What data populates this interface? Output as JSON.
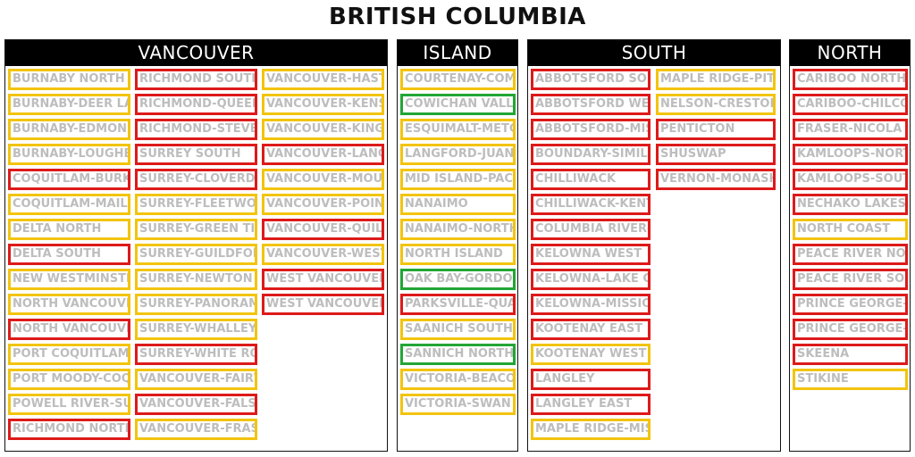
{
  "title": "BRITISH COLUMBIA",
  "colors": {
    "red": "#dd1a1a",
    "yellow": "#f2c40f",
    "green": "#22a636"
  },
  "regions": [
    {
      "name": "VANCOUVER",
      "columns": [
        [
          {
            "label": "BURNABY NORTH",
            "status": "yellow"
          },
          {
            "label": "BURNABY-DEER LAKE",
            "status": "yellow"
          },
          {
            "label": "BURNABY-EDMONDS",
            "status": "yellow"
          },
          {
            "label": "BURNABY-LOUGHEED",
            "status": "yellow"
          },
          {
            "label": "COQUITLAM-BURKE MOUNTAIN",
            "status": "red"
          },
          {
            "label": "COQUITLAM-MAILLARDVILLE",
            "status": "yellow"
          },
          {
            "label": "DELTA NORTH",
            "status": "yellow"
          },
          {
            "label": "DELTA SOUTH",
            "status": "red"
          },
          {
            "label": "NEW WESTMINSTER",
            "status": "yellow"
          },
          {
            "label": "NORTH VANCOUVER-LONSDALE",
            "status": "yellow"
          },
          {
            "label": "NORTH VANCOUVER-SEYMOUR",
            "status": "red"
          },
          {
            "label": "PORT COQUITLAM",
            "status": "yellow"
          },
          {
            "label": "PORT MOODY-COQUITLAM",
            "status": "yellow"
          },
          {
            "label": "POWELL RIVER-SUNSHINE COAST",
            "status": "yellow"
          },
          {
            "label": "RICHMOND NORTH CENTRE",
            "status": "red"
          }
        ],
        [
          {
            "label": "RICHMOND SOUTH CENTRE",
            "status": "red"
          },
          {
            "label": "RICHMOND-QUEENSBOROUGH",
            "status": "red"
          },
          {
            "label": "RICHMOND-STEVESTON",
            "status": "red"
          },
          {
            "label": "SURREY SOUTH",
            "status": "red"
          },
          {
            "label": "SURREY-CLOVERDALE",
            "status": "red"
          },
          {
            "label": "SURREY-FLEETWOOD",
            "status": "yellow"
          },
          {
            "label": "SURREY-GREEN TIMBERS",
            "status": "yellow"
          },
          {
            "label": "SURREY-GUILDFORD",
            "status": "yellow"
          },
          {
            "label": "SURREY-NEWTON",
            "status": "yellow"
          },
          {
            "label": "SURREY-PANORAMA",
            "status": "yellow"
          },
          {
            "label": "SURREY-WHALLEY",
            "status": "yellow"
          },
          {
            "label": "SURREY-WHITE ROCK",
            "status": "red"
          },
          {
            "label": "VANCOUVER-FAIRVIEW",
            "status": "yellow"
          },
          {
            "label": "VANCOUVER-FALSE CREEK",
            "status": "red"
          },
          {
            "label": "VANCOUVER-FRASERVIEW",
            "status": "yellow"
          }
        ],
        [
          {
            "label": "VANCOUVER-HASTINGS",
            "status": "yellow"
          },
          {
            "label": "VANCOUVER-KENSINGTON",
            "status": "yellow"
          },
          {
            "label": "VANCOUVER-KINGSWAY",
            "status": "yellow"
          },
          {
            "label": "VANCOUVER-LANGARA",
            "status": "red"
          },
          {
            "label": "VANCOUVER-MOUNT PLEASANT",
            "status": "yellow"
          },
          {
            "label": "VANCOUVER-POINT GREY",
            "status": "yellow"
          },
          {
            "label": "VANCOUVER-QUILCHENA",
            "status": "red"
          },
          {
            "label": "VANCOUVER-WEST END",
            "status": "yellow"
          },
          {
            "label": "WEST VANCOUVER-CAPILANO",
            "status": "red"
          },
          {
            "label": "WEST VANCOUVER-SEA TO SKY",
            "status": "red"
          }
        ]
      ]
    },
    {
      "name": "ISLAND",
      "columns": [
        [
          {
            "label": "COURTENAY-COMOX",
            "status": "yellow"
          },
          {
            "label": "COWICHAN VALLEY",
            "status": "green"
          },
          {
            "label": "ESQUIMALT-METCHOSIN",
            "status": "yellow"
          },
          {
            "label": "LANGFORD-JUAN DE FUCA",
            "status": "yellow"
          },
          {
            "label": "MID ISLAND-PACIFIC RIM",
            "status": "yellow"
          },
          {
            "label": "NANAIMO",
            "status": "yellow"
          },
          {
            "label": "NANAIMO-NORTH COWICHAN",
            "status": "yellow"
          },
          {
            "label": "NORTH ISLAND",
            "status": "yellow"
          },
          {
            "label": "OAK BAY-GORDON HEAD",
            "status": "green"
          },
          {
            "label": "PARKSVILLE-QUALICUM",
            "status": "red"
          },
          {
            "label": "SAANICH SOUTH",
            "status": "yellow"
          },
          {
            "label": "SANNICH NORTH AND THE ISLANDS",
            "status": "green"
          },
          {
            "label": "VICTORIA-BEACON HILL",
            "status": "yellow"
          },
          {
            "label": "VICTORIA-SWAN LAKE",
            "status": "yellow"
          }
        ]
      ]
    },
    {
      "name": "SOUTH",
      "columns": [
        [
          {
            "label": "ABBOTSFORD SOUTH",
            "status": "red"
          },
          {
            "label": "ABBOTSFORD WEST",
            "status": "red"
          },
          {
            "label": "ABBOTSFORD-MISSION",
            "status": "red"
          },
          {
            "label": "BOUNDARY-SIMILKAMEEN",
            "status": "red"
          },
          {
            "label": "CHILLIWACK",
            "status": "red"
          },
          {
            "label": "CHILLIWACK-KENT",
            "status": "red"
          },
          {
            "label": "COLUMBIA RIVER-REVELSTOKE",
            "status": "red"
          },
          {
            "label": "KELOWNA WEST",
            "status": "red"
          },
          {
            "label": "KELOWNA-LAKE COUNTRY",
            "status": "red"
          },
          {
            "label": "KELOWNA-MISSION",
            "status": "red"
          },
          {
            "label": "KOOTENAY EAST",
            "status": "red"
          },
          {
            "label": "KOOTENAY WEST",
            "status": "yellow"
          },
          {
            "label": "LANGLEY",
            "status": "red"
          },
          {
            "label": "LANGLEY EAST",
            "status": "red"
          },
          {
            "label": "MAPLE RIDGE-MISSION",
            "status": "yellow"
          }
        ],
        [
          {
            "label": "MAPLE RIDGE-PITT MEADOWS",
            "status": "yellow"
          },
          {
            "label": "NELSON-CRESTON",
            "status": "yellow"
          },
          {
            "label": "PENTICTON",
            "status": "red"
          },
          {
            "label": "SHUSWAP",
            "status": "red"
          },
          {
            "label": "VERNON-MONASHEE",
            "status": "red"
          }
        ]
      ]
    },
    {
      "name": "NORTH",
      "columns": [
        [
          {
            "label": "CARIBOO NORTH",
            "status": "red"
          },
          {
            "label": "CARIBOO-CHILCOTIN",
            "status": "red"
          },
          {
            "label": "FRASER-NICOLA",
            "status": "red"
          },
          {
            "label": "KAMLOOPS-NORTH THOMPSON",
            "status": "red"
          },
          {
            "label": "KAMLOOPS-SOUTH THOMPSON",
            "status": "red"
          },
          {
            "label": "NECHAKO LAKES",
            "status": "red"
          },
          {
            "label": "NORTH COAST",
            "status": "yellow"
          },
          {
            "label": "PEACE RIVER NORTH",
            "status": "red"
          },
          {
            "label": "PEACE RIVER SOUTH",
            "status": "red"
          },
          {
            "label": "PRINCE GEORGE-MACKENZIE",
            "status": "red"
          },
          {
            "label": "PRINCE GEORGE-VALEMOUNT",
            "status": "red"
          },
          {
            "label": "SKEENA",
            "status": "red"
          },
          {
            "label": "STIKINE",
            "status": "yellow"
          }
        ]
      ]
    }
  ]
}
